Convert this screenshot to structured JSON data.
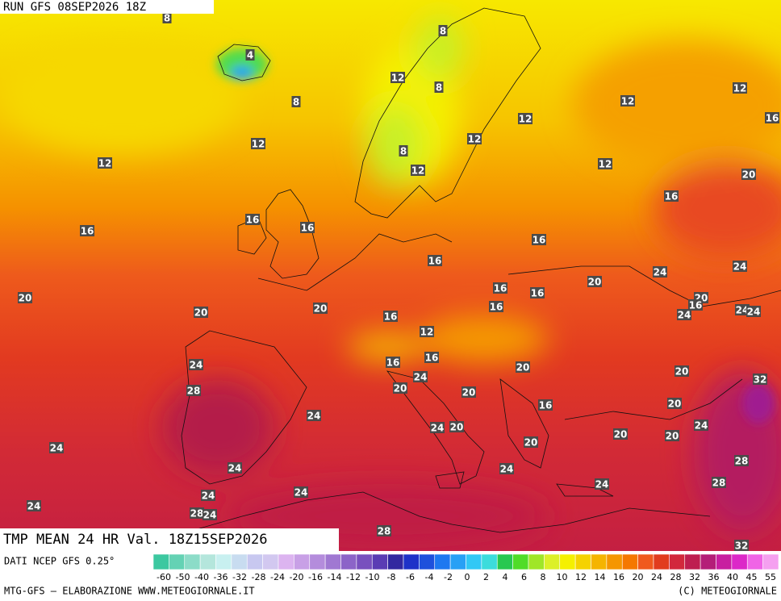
{
  "header": {
    "run": "RUN GFS 08SEP2026 18Z"
  },
  "map": {
    "title": "TMP MEAN 24 HR Val. 18Z15SEP2026",
    "contour_labels": [
      8,
      4,
      8,
      12,
      8,
      8,
      12,
      12,
      12,
      16,
      12,
      12,
      8,
      12,
      12,
      12,
      20,
      16,
      16,
      16,
      16,
      16,
      16,
      24,
      24,
      20,
      16,
      16,
      20,
      16,
      20,
      20,
      20,
      16,
      24,
      24,
      24,
      16,
      12,
      16,
      16,
      24,
      20,
      24,
      20,
      32,
      28,
      20,
      20,
      16,
      20,
      24,
      24,
      24,
      20,
      20,
      20,
      20,
      24,
      28,
      24,
      24,
      28,
      24,
      24,
      24,
      24,
      28,
      24,
      28,
      32
    ]
  },
  "footer": {
    "source": "DATI NCEP GFS 0.25°",
    "credit": "MTG-GFS — ELABORAZIONE WWW.METEOGIORNALE.IT",
    "copyright": "(C) METEOGIORNALE"
  },
  "legend": {
    "labels": [
      -60,
      -50,
      -40,
      -36,
      -32,
      -28,
      -24,
      -20,
      -16,
      -14,
      -12,
      -10,
      -8,
      -6,
      -4,
      -2,
      0,
      2,
      4,
      6,
      8,
      10,
      12,
      14,
      16,
      20,
      24,
      28,
      32,
      36,
      40,
      45,
      55
    ],
    "colors": [
      "#3cc8a0",
      "#64d2b4",
      "#8cdcc8",
      "#b4e6dc",
      "#c8f0f0",
      "#c8dcf0",
      "#c8c8f0",
      "#d2c8f0",
      "#dcb4f0",
      "#c8a0e6",
      "#b48cdc",
      "#a078d2",
      "#8c64c8",
      "#7850be",
      "#5a3cb4",
      "#3228a0",
      "#1e32c8",
      "#1e50dc",
      "#1e78f0",
      "#28a0f5",
      "#32c8f5",
      "#3cdcdc",
      "#28c850",
      "#50dc28",
      "#a0e628",
      "#dcf028",
      "#f5f000",
      "#f5d200",
      "#f5b400",
      "#f59600",
      "#f57800",
      "#f05a1e",
      "#e13c1e",
      "#d2283c",
      "#be1e50",
      "#b41e78",
      "#c81ea0",
      "#dc28c8",
      "#f064e6",
      "#f5a0f0"
    ]
  }
}
